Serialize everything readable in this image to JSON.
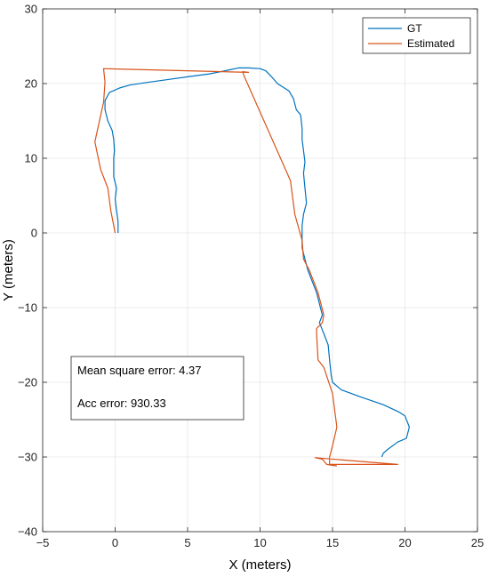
{
  "chart_data": {
    "type": "line",
    "title": "",
    "xlabel": "X (meters)",
    "ylabel": "Y (meters)",
    "xlim": [
      -5,
      25
    ],
    "ylim": [
      -40,
      30
    ],
    "xticks": [
      -5,
      0,
      5,
      10,
      15,
      20,
      25
    ],
    "yticks": [
      -40,
      -30,
      -20,
      -10,
      0,
      10,
      20,
      30
    ],
    "grid": true,
    "legend_position": "top-right",
    "series": [
      {
        "name": "GT",
        "color": "#0072BD",
        "points": [
          [
            0.2,
            0
          ],
          [
            0.2,
            1.5
          ],
          [
            0.1,
            3
          ],
          [
            0.0,
            4.5
          ],
          [
            0.1,
            6
          ],
          [
            -0.1,
            7.5
          ],
          [
            -0.1,
            9
          ],
          [
            -0.1,
            10
          ],
          [
            -0.05,
            11
          ],
          [
            -0.1,
            12.5
          ],
          [
            -0.2,
            13.7
          ],
          [
            -0.5,
            15
          ],
          [
            -0.7,
            16.5
          ],
          [
            -0.7,
            17.7
          ],
          [
            -0.4,
            18.8
          ],
          [
            0.3,
            19.4
          ],
          [
            1.0,
            19.8
          ],
          [
            2.0,
            20.1
          ],
          [
            3.5,
            20.5
          ],
          [
            5.0,
            20.9
          ],
          [
            6.5,
            21.3
          ],
          [
            7.8,
            21.8
          ],
          [
            8.5,
            22.1
          ],
          [
            9.2,
            22.1
          ],
          [
            10.0,
            22.0
          ],
          [
            10.4,
            21.7
          ],
          [
            10.8,
            20.9
          ],
          [
            11.2,
            20.0
          ],
          [
            12.0,
            19.0
          ],
          [
            12.3,
            18.0
          ],
          [
            12.5,
            16.5
          ],
          [
            12.8,
            15.8
          ],
          [
            12.9,
            14.0
          ],
          [
            12.9,
            12.5
          ],
          [
            13.0,
            11.0
          ],
          [
            13.1,
            9.5
          ],
          [
            13.0,
            8.0
          ],
          [
            13.1,
            6.0
          ],
          [
            13.2,
            4.0
          ],
          [
            13.0,
            2.5
          ],
          [
            12.9,
            1.0
          ],
          [
            12.9,
            -0.5
          ],
          [
            12.9,
            -2.0
          ],
          [
            13.1,
            -3.5
          ],
          [
            13.3,
            -5.0
          ],
          [
            13.6,
            -6.5
          ],
          [
            13.9,
            -8.0
          ],
          [
            14.1,
            -9.5
          ],
          [
            14.3,
            -11.0
          ],
          [
            14.1,
            -12.0
          ],
          [
            14.3,
            -13.0
          ],
          [
            14.5,
            -14.0
          ],
          [
            14.7,
            -15.0
          ],
          [
            14.8,
            -17.0
          ],
          [
            14.9,
            -19.0
          ],
          [
            15.0,
            -20.0
          ],
          [
            15.6,
            -21.0
          ],
          [
            17.0,
            -22.0
          ],
          [
            18.5,
            -23.0
          ],
          [
            19.6,
            -24.0
          ],
          [
            20.0,
            -24.5
          ],
          [
            20.3,
            -26.0
          ],
          [
            20.1,
            -27.5
          ],
          [
            19.5,
            -28.0
          ],
          [
            18.8,
            -29.0
          ],
          [
            18.5,
            -29.5
          ],
          [
            18.4,
            -30.0
          ]
        ]
      },
      {
        "name": "Estimated",
        "color": "#D95319",
        "points": [
          [
            0.0,
            0
          ],
          [
            -0.3,
            3
          ],
          [
            -0.5,
            6
          ],
          [
            -1.0,
            8.5
          ],
          [
            -1.4,
            12.2
          ],
          [
            -0.8,
            17.5
          ],
          [
            -0.7,
            20.2
          ],
          [
            -0.8,
            22.0
          ],
          [
            9.2,
            21.5
          ],
          [
            8.8,
            21.6
          ],
          [
            8.9,
            21.0
          ],
          [
            12.1,
            7.0
          ],
          [
            12.4,
            2.5
          ],
          [
            12.9,
            -1.0
          ],
          [
            13.0,
            -3.5
          ],
          [
            13.4,
            -5.0
          ],
          [
            14.0,
            -8.0
          ],
          [
            14.4,
            -11.0
          ],
          [
            14.3,
            -12.0
          ],
          [
            13.9,
            -12.8
          ],
          [
            13.9,
            -13.5
          ],
          [
            14.0,
            -17.0
          ],
          [
            14.4,
            -18.0
          ],
          [
            15.0,
            -21.5
          ],
          [
            15.3,
            -26.0
          ],
          [
            15.0,
            -28.5
          ],
          [
            14.8,
            -30.0
          ],
          [
            14.8,
            -31.0
          ],
          [
            15.2,
            -31.0
          ],
          [
            19.5,
            -31.0
          ],
          [
            13.8,
            -30.1
          ],
          [
            14.3,
            -30.3
          ],
          [
            14.6,
            -31.0
          ],
          [
            15.3,
            -31.2
          ]
        ]
      }
    ],
    "annotations": [
      "Mean square error: 4.37",
      "Acc error: 930.33"
    ]
  }
}
